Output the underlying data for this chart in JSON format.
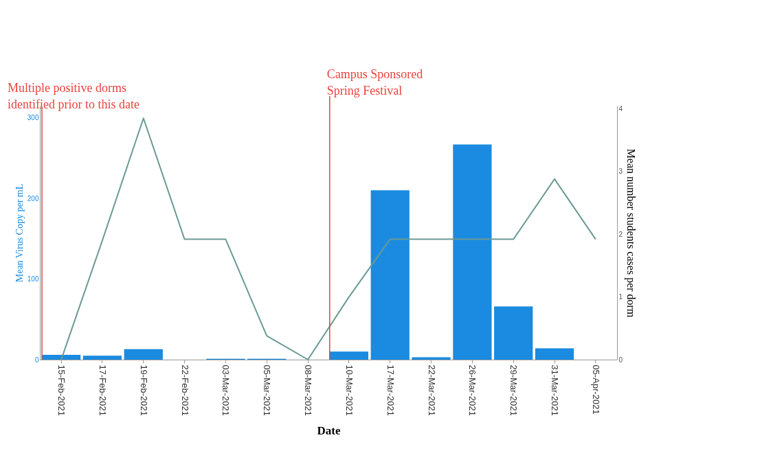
{
  "chart_data": {
    "type": "bar",
    "xlabel": "Date",
    "ylabel": "Mean Virus Copy per mL",
    "y2label": "Mean number students cases per dorm",
    "categories": [
      "15-Feb-2021",
      "17-Feb-2021",
      "19-Feb-2021",
      "22-Feb-2021",
      "03-Mar-2021",
      "05-Mar-2021",
      "08-Mar-2021",
      "10-Mar-2021",
      "17-Mar-2021",
      "22-Mar-2021",
      "26-Mar-2021",
      "29-Mar-2021",
      "31-Mar-2021",
      "05-Apr-2021"
    ],
    "series": [
      {
        "color": "#1a8be0",
        "values": [
          6,
          5,
          13,
          0,
          1,
          1,
          0,
          10,
          210,
          3,
          267,
          66,
          14,
          0
        ]
      },
      {
        "type": "line",
        "axis": "y2",
        "color": "#6a9a94",
        "values": [
          0,
          1.9,
          3.85,
          1.92,
          1.92,
          0.38,
          0,
          1.0,
          1.92,
          1.92,
          1.92,
          1.92,
          2.88,
          1.92
        ]
      }
    ],
    "ylim": [
      0,
      315
    ],
    "yticks": [
      0,
      100,
      200,
      300
    ],
    "y2lim": [
      0,
      4.05
    ],
    "y2ticks": [
      0,
      1,
      2,
      3,
      4
    ],
    "ref_lines": [
      {
        "axis": "x",
        "value": "15-Feb-2021",
        "label": "Multiple positive dorms\nidentified prior to this date",
        "color": "#e8433f"
      },
      {
        "axis": "x",
        "value": "10-Mar-2021",
        "label": "Campus Sponsored\nSpring Festival",
        "color": "#e8433f"
      }
    ],
    "grid": false
  }
}
